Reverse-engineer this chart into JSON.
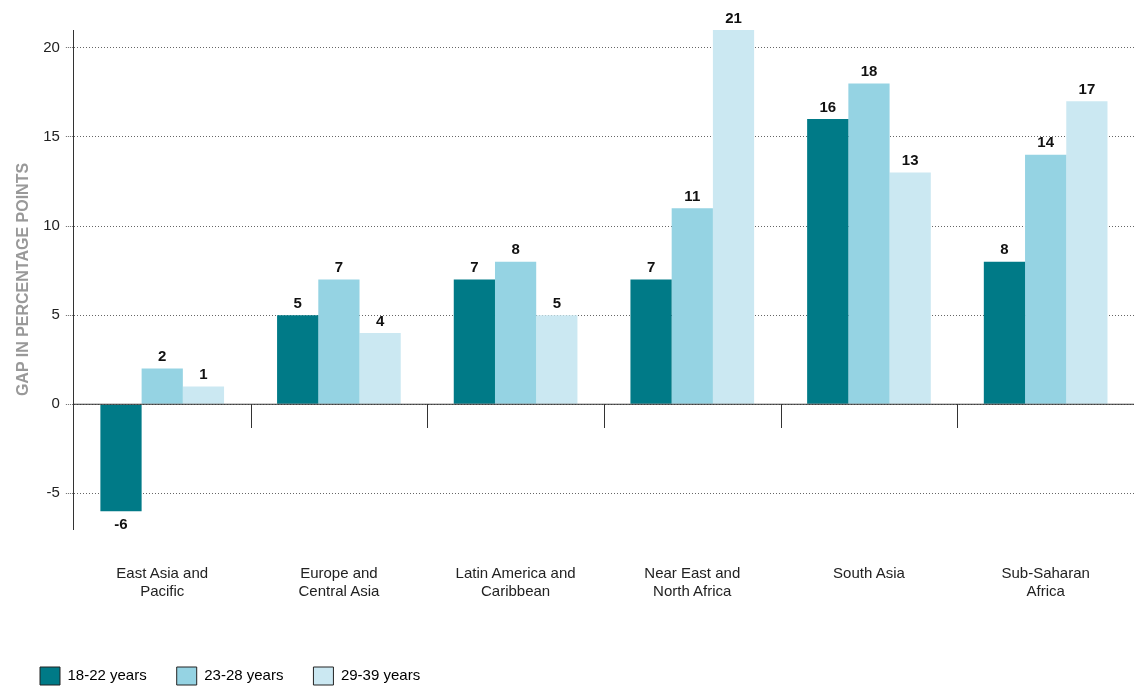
{
  "chart_data": {
    "type": "bar",
    "ylabel": "GAP IN PERCENTAGE POINTS",
    "categories": [
      "East Asia and Pacific",
      "Europe and Central Asia",
      "Latin America and Caribbean",
      "Near East and North Africa",
      "South Asia",
      "Sub-Saharan Africa"
    ],
    "series": [
      {
        "name": "18-22 years",
        "color": "#007a87",
        "values": [
          -6,
          5,
          7,
          7,
          16,
          8
        ]
      },
      {
        "name": "23-28 years",
        "color": "#95d3e3",
        "values": [
          2,
          7,
          8,
          11,
          18,
          14
        ]
      },
      {
        "name": "29-39 years",
        "color": "#cbe8f2",
        "values": [
          1,
          4,
          5,
          21,
          13,
          17
        ]
      }
    ],
    "ylim": [
      -7,
      21
    ],
    "yticks": [
      -5,
      0,
      5,
      10,
      15,
      20
    ],
    "grid": "y",
    "legend": "bottom left",
    "data_labels": true
  }
}
